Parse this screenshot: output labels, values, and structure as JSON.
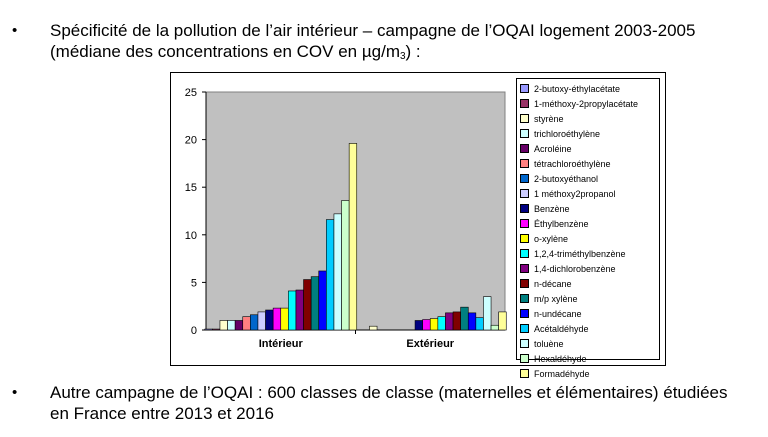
{
  "bullets": {
    "symbol": "•",
    "first_line1": "Spécificité de la pollution de l’air intérieur – campagne de l’OQAI logement 2003-2005",
    "first_line2_pre": "(médiane des concentrations en COV en µg/m",
    "first_line2_sub": "3",
    "first_line2_post": ") :",
    "second_line1": "Autre campagne de l’OQAI : 600 classes de classe (maternelles et élémentaires) étudiées",
    "second_line2": "en France entre 2013 et 2016"
  },
  "chart_data": {
    "type": "bar",
    "title": "",
    "xlabel": "",
    "ylabel": "",
    "categories": [
      "Intérieur",
      "Extérieur"
    ],
    "ylim": [
      0,
      25
    ],
    "yticks": [
      0,
      5,
      10,
      15,
      20,
      25
    ],
    "grid": false,
    "legend_position": "right",
    "plot_background": "#c0c0c0",
    "series": [
      {
        "name": "2-butoxy-éthylacétate",
        "color": "#9999ff",
        "values": [
          0.1,
          0
        ]
      },
      {
        "name": "1-méthoxy-2propylacétate",
        "color": "#993366",
        "values": [
          0.1,
          0
        ]
      },
      {
        "name": "styrène",
        "color": "#ffffcc",
        "values": [
          1.0,
          0.4
        ]
      },
      {
        "name": "trichloroéthylène",
        "color": "#ccffff",
        "values": [
          1.0,
          0
        ]
      },
      {
        "name": "Acroléine",
        "color": "#660066",
        "values": [
          1.0,
          0
        ]
      },
      {
        "name": "tétrachloroéthylène",
        "color": "#ff8080",
        "values": [
          1.4,
          0
        ]
      },
      {
        "name": "2-butoxyéthanol",
        "color": "#0066cc",
        "values": [
          1.6,
          0
        ]
      },
      {
        "name": "1 méthoxy2propanol",
        "color": "#ccccff",
        "values": [
          1.9,
          0
        ]
      },
      {
        "name": "Benzène",
        "color": "#000080",
        "values": [
          2.1,
          1.0
        ]
      },
      {
        "name": "Éthylbenzène",
        "color": "#ff00ff",
        "values": [
          2.3,
          1.1
        ]
      },
      {
        "name": "o-xylène",
        "color": "#ffff00",
        "values": [
          2.3,
          1.2
        ]
      },
      {
        "name": "1,2,4-triméthylbenzène",
        "color": "#00ffff",
        "values": [
          4.1,
          1.4
        ]
      },
      {
        "name": "1,4-dichlorobenzène",
        "color": "#800080",
        "values": [
          4.2,
          1.8
        ]
      },
      {
        "name": "n-décane",
        "color": "#800000",
        "values": [
          5.3,
          1.9
        ]
      },
      {
        "name": "m/p xylène",
        "color": "#008080",
        "values": [
          5.6,
          2.4
        ]
      },
      {
        "name": "n-undécane",
        "color": "#0000ff",
        "values": [
          6.2,
          1.8
        ]
      },
      {
        "name": "Acétaldéhyde",
        "color": "#00ccff",
        "values": [
          11.6,
          1.3
        ]
      },
      {
        "name": "toluène",
        "color": "#ccffff",
        "values": [
          12.2,
          3.5
        ]
      },
      {
        "name": "Hexaldéhyde",
        "color": "#ccffcc",
        "values": [
          13.6,
          0.5
        ]
      },
      {
        "name": "Formadéhyde",
        "color": "#ffff99",
        "values": [
          19.6,
          1.9
        ]
      }
    ]
  }
}
